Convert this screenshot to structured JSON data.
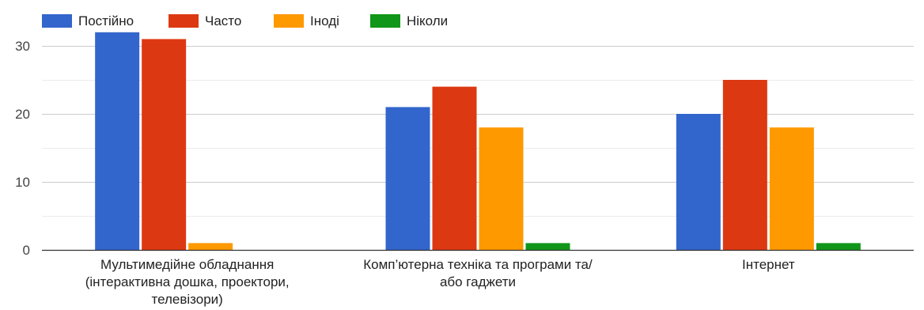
{
  "chart_data": {
    "type": "bar",
    "categories": [
      [
        "Мультимедійне обладнання",
        "(інтерактивна дошка, проектори,",
        "телевізори)"
      ],
      [
        "Комп’ютерна техніка та програми та/",
        "або гаджети"
      ],
      [
        "Інтернет"
      ]
    ],
    "series": [
      {
        "name": "Постійно",
        "color": "#3366cc",
        "values": [
          32,
          21,
          20
        ]
      },
      {
        "name": "Часто",
        "color": "#dc3912",
        "values": [
          31,
          24,
          25
        ]
      },
      {
        "name": "Іноді",
        "color": "#ff9900",
        "values": [
          1,
          18,
          18
        ]
      },
      {
        "name": "Ніколи",
        "color": "#109618",
        "values": [
          0,
          1,
          1
        ]
      }
    ],
    "yticks": [
      0,
      10,
      20,
      30
    ],
    "ylim": [
      0,
      35
    ],
    "grid": true,
    "legend_position": "top-left"
  }
}
